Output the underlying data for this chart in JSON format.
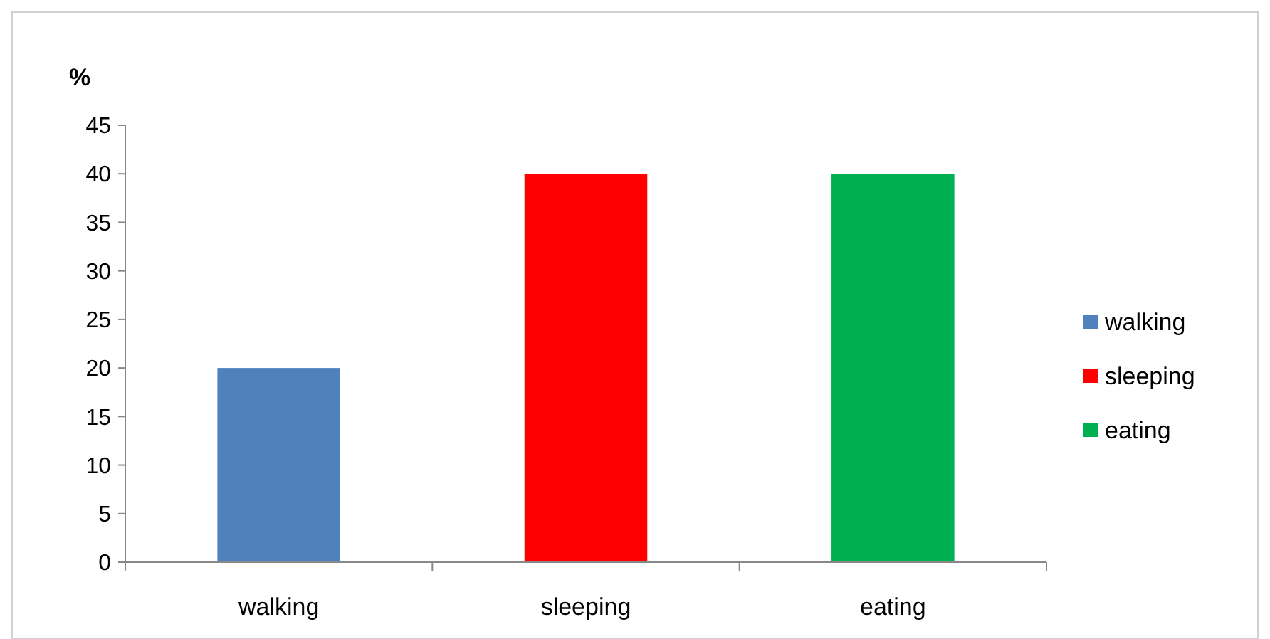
{
  "chart_data": {
    "type": "bar",
    "ylabel": "%",
    "categories": [
      "walking",
      "sleeping",
      "eating"
    ],
    "series": [
      {
        "name": "walking",
        "color": "#4f81bd",
        "values": [
          20,
          null,
          null
        ]
      },
      {
        "name": "sleeping",
        "color": "#ff0000",
        "values": [
          null,
          40,
          null
        ]
      },
      {
        "name": "eating",
        "color": "#00b050",
        "values": [
          null,
          null,
          40
        ]
      }
    ],
    "stacked": true,
    "ylim": [
      0,
      45
    ],
    "yticks": [
      0,
      5,
      10,
      15,
      20,
      25,
      30,
      35,
      40,
      45
    ],
    "legend": "right"
  }
}
